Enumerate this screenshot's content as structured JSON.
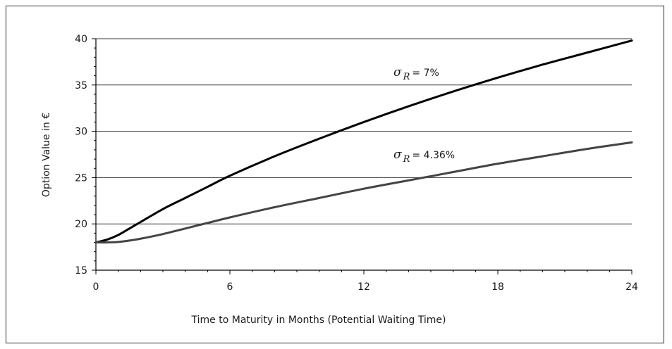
{
  "chart_data": {
    "type": "line",
    "title": "",
    "xlabel": "Time to Maturity in Months (Potential Waiting Time)",
    "ylabel": "Option Value in €",
    "xlim": [
      0,
      24
    ],
    "ylim": [
      15,
      40
    ],
    "xticks": [
      0,
      6,
      12,
      18,
      24
    ],
    "yticks": [
      15,
      20,
      25,
      30,
      35,
      40
    ],
    "grid": "horizontal",
    "legend": "none",
    "series": [
      {
        "annotation": {
          "symbol": "σ",
          "subscript": "R",
          "text": "= 7%"
        },
        "color": "#000000",
        "x": [
          0,
          0.5,
          1,
          1.5,
          2,
          3,
          4,
          5,
          6,
          8,
          10,
          12,
          14,
          16,
          18,
          20,
          22,
          24
        ],
        "y": [
          18.0,
          18.3,
          18.8,
          19.5,
          20.2,
          21.6,
          22.8,
          24.0,
          25.2,
          27.3,
          29.2,
          31.0,
          32.7,
          34.3,
          35.8,
          37.2,
          38.5,
          39.8
        ]
      },
      {
        "annotation": {
          "symbol": "σ",
          "subscript": "R",
          "text": "= 4.36%"
        },
        "color": "#444444",
        "x": [
          0,
          0.5,
          1,
          1.5,
          2,
          3,
          4,
          5,
          6,
          8,
          10,
          12,
          14,
          16,
          18,
          20,
          22,
          24
        ],
        "y": [
          18.0,
          18.0,
          18.05,
          18.2,
          18.4,
          18.9,
          19.5,
          20.1,
          20.7,
          21.8,
          22.8,
          23.8,
          24.7,
          25.6,
          26.5,
          27.3,
          28.1,
          28.8
        ]
      }
    ]
  }
}
